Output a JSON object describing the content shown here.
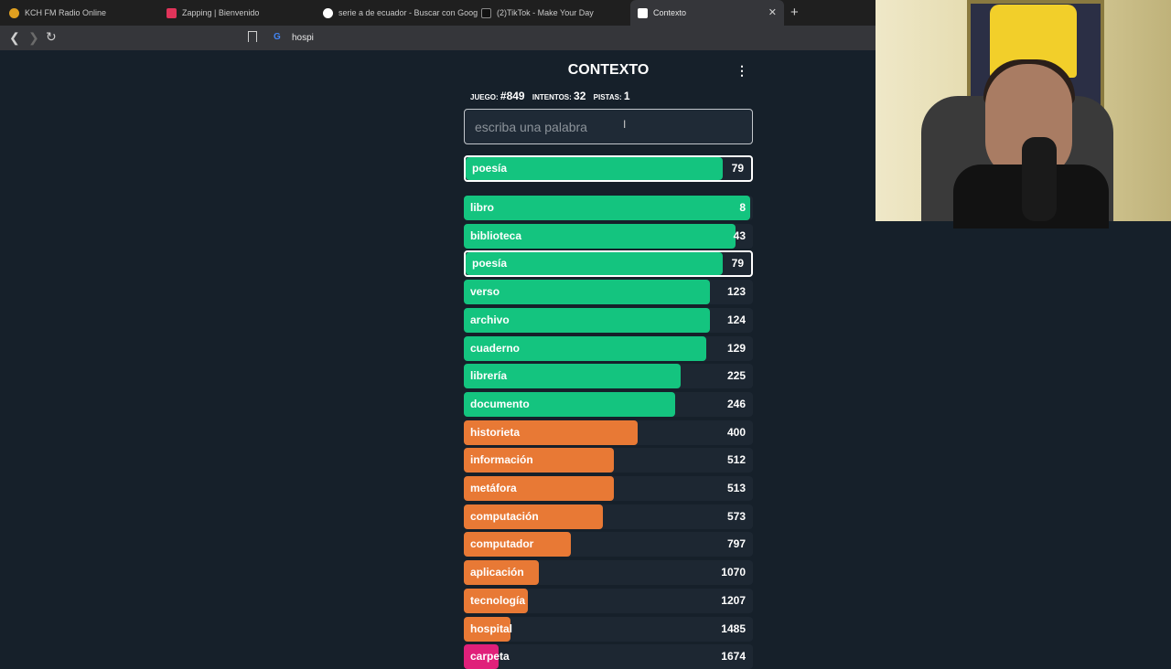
{
  "browser": {
    "tabs": [
      {
        "title": "KCH FM Radio Online",
        "icon_color": "#e0a020"
      },
      {
        "title": "Zapping | Bienvenido",
        "icon_color": "#e0345a"
      },
      {
        "title": "serie a de ecuador - Buscar con Goog",
        "icon_color": "#ffffff"
      },
      {
        "title": "(2)TikTok - Make Your Day",
        "icon_color": "#111111"
      },
      {
        "title": "Contexto",
        "icon_color": "#ffffff"
      }
    ],
    "close_glyph": "✕",
    "newtab_glyph": "+",
    "address": "hospi",
    "g_glyph": "G"
  },
  "game": {
    "title": "CONTEXTO",
    "menu_glyph": "⋮",
    "stats": {
      "juego_label": "JUEGO:",
      "juego_value": "#849",
      "intentos_label": "INTENTOS:",
      "intentos_value": "32",
      "pistas_label": "PISTAS:",
      "pistas_value": "1"
    },
    "input_placeholder": "escriba una palabra",
    "last_guess": {
      "word": "poesía",
      "value": 79,
      "color": "#14c47f",
      "fill": 0.9
    },
    "guesses": [
      {
        "word": "libro",
        "value": 8,
        "color": "#14c47f",
        "fill": 0.99
      },
      {
        "word": "biblioteca",
        "value": 43,
        "color": "#14c47f",
        "fill": 0.94
      },
      {
        "word": "poesía",
        "value": 79,
        "color": "#14c47f",
        "fill": 0.9,
        "highlight": true
      },
      {
        "word": "verso",
        "value": 123,
        "color": "#14c47f",
        "fill": 0.85
      },
      {
        "word": "archivo",
        "value": 124,
        "color": "#14c47f",
        "fill": 0.85
      },
      {
        "word": "cuaderno",
        "value": 129,
        "color": "#14c47f",
        "fill": 0.84
      },
      {
        "word": "librería",
        "value": 225,
        "color": "#14c47f",
        "fill": 0.75
      },
      {
        "word": "documento",
        "value": 246,
        "color": "#14c47f",
        "fill": 0.73
      },
      {
        "word": "historieta",
        "value": 400,
        "color": "#e87935",
        "fill": 0.6
      },
      {
        "word": "información",
        "value": 512,
        "color": "#e87935",
        "fill": 0.52
      },
      {
        "word": "metáfora",
        "value": 513,
        "color": "#e87935",
        "fill": 0.52
      },
      {
        "word": "computación",
        "value": 573,
        "color": "#e87935",
        "fill": 0.48
      },
      {
        "word": "computador",
        "value": 797,
        "color": "#e87935",
        "fill": 0.37
      },
      {
        "word": "aplicación",
        "value": 1070,
        "color": "#e87935",
        "fill": 0.26
      },
      {
        "word": "tecnología",
        "value": 1207,
        "color": "#e87935",
        "fill": 0.22
      },
      {
        "word": "hospital",
        "value": 1485,
        "color": "#e87935",
        "fill": 0.16
      },
      {
        "word": "carpeta",
        "value": 1674,
        "color": "#e0207a",
        "fill": 0.12
      }
    ]
  }
}
